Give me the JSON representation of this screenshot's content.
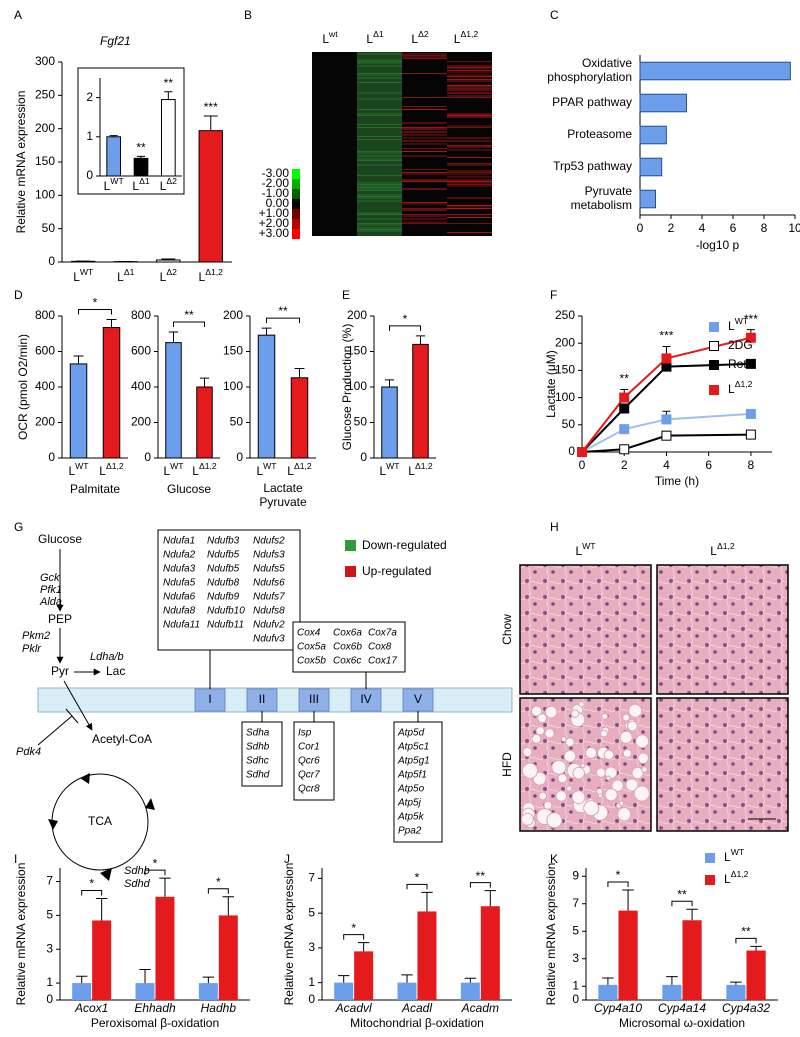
{
  "panel_labels": [
    "A",
    "B",
    "C",
    "D",
    "E",
    "F",
    "G",
    "H",
    "I",
    "J",
    "K"
  ],
  "chart_data": [
    {
      "type": "bar",
      "title": "Fgf21",
      "y_label": "Relative mRNA expression",
      "categories": [
        {
          "base": "L",
          "sup": "WT"
        },
        {
          "base": "L",
          "sup": "Δ1"
        },
        {
          "base": "L",
          "sup": "Δ2"
        },
        {
          "base": "L",
          "sup": "Δ1,2"
        }
      ],
      "values": [
        1,
        0.5,
        3,
        197
      ],
      "errors": [
        0.3,
        0.2,
        1.5,
        22
      ],
      "colors": [
        "#6d9eeb",
        "#000000",
        "#ffffff",
        "#e41a1c"
      ],
      "annotations": [
        null,
        null,
        null,
        "***"
      ],
      "ylim": [
        0,
        300
      ],
      "yticks": [
        0,
        50,
        100,
        150,
        200,
        250,
        300
      ]
    },
    {
      "type": "bar",
      "categories": [
        {
          "base": "L",
          "sup": "WT"
        },
        {
          "base": "L",
          "sup": "Δ1"
        },
        {
          "base": "L",
          "sup": "Δ2"
        }
      ],
      "values": [
        1,
        0.45,
        1.95
      ],
      "errors": [
        0.03,
        0.05,
        0.2
      ],
      "colors": [
        "#6d9eeb",
        "#000000",
        "#ffffff"
      ],
      "annotations": [
        null,
        "**",
        "**"
      ],
      "ylim": [
        0,
        2.5
      ],
      "yticks": [
        0,
        1,
        2
      ]
    },
    {
      "type": "hbar",
      "categories": [
        [
          "Oxidative",
          "phosphorylation"
        ],
        [
          "PPAR pathway"
        ],
        [
          "Proteasome"
        ],
        [
          "Trp53 pathway"
        ],
        [
          "Pyruvate",
          "metabolism"
        ]
      ],
      "values": [
        9.7,
        3.0,
        1.7,
        1.4,
        1.0
      ],
      "color": "#6d9eeb",
      "x_label": "-log10 p",
      "xlim": [
        0,
        10
      ],
      "xticks": [
        0,
        2,
        4,
        6,
        8,
        10
      ]
    },
    {
      "type": "bar",
      "y_label": "OCR (pmol O2/min)",
      "categories": [
        {
          "base": "L",
          "sup": "WT"
        },
        {
          "base": "L",
          "sup": "Δ1,2"
        }
      ],
      "values": [
        530,
        735
      ],
      "errors": [
        45,
        45
      ],
      "colors": [
        "#6d9eeb",
        "#e41a1c"
      ],
      "bracket_label": "*",
      "x_label": "Palmitate",
      "ylim": [
        0,
        800
      ],
      "yticks": [
        0,
        200,
        400,
        600,
        800
      ]
    },
    {
      "type": "bar",
      "categories": [
        {
          "base": "L",
          "sup": "WT"
        },
        {
          "base": "L",
          "sup": "Δ1,2"
        }
      ],
      "values": [
        650,
        400
      ],
      "errors": [
        60,
        50
      ],
      "colors": [
        "#6d9eeb",
        "#e41a1c"
      ],
      "bracket_label": "**",
      "x_label": "Glucose",
      "ylim": [
        0,
        800
      ],
      "yticks": [
        0,
        200,
        400,
        600,
        800
      ]
    },
    {
      "type": "bar",
      "categories": [
        {
          "base": "L",
          "sup": "WT"
        },
        {
          "base": "L",
          "sup": "Δ1,2"
        }
      ],
      "values": [
        173,
        113
      ],
      "errors": [
        10,
        13
      ],
      "colors": [
        "#6d9eeb",
        "#e41a1c"
      ],
      "bracket_label": "**",
      "x_label": [
        "Lactate",
        "Pyruvate"
      ],
      "ylim": [
        0,
        200
      ],
      "yticks": [
        0,
        50,
        100,
        150,
        200
      ]
    },
    {
      "type": "bar",
      "y_label": "Glucose Production (%)",
      "categories": [
        {
          "base": "L",
          "sup": "WT"
        },
        {
          "base": "L",
          "sup": "Δ1,2"
        }
      ],
      "values": [
        100,
        160
      ],
      "errors": [
        10,
        12
      ],
      "colors": [
        "#6d9eeb",
        "#e41a1c"
      ],
      "bracket_label": "*",
      "ylim": [
        0,
        200
      ],
      "yticks": [
        0,
        50,
        100,
        150,
        200
      ]
    },
    {
      "type": "line",
      "y_label": "Lactate (μM)",
      "x_label": "Time (h)",
      "x": [
        0,
        2,
        4,
        8
      ],
      "series": [
        {
          "name": {
            "base": "L",
            "sup": "WT"
          },
          "color": "#9fbff2",
          "marker_color": "#6d9eeb",
          "values": [
            0,
            42,
            60,
            70
          ],
          "errors": [
            0,
            6,
            15,
            8
          ]
        },
        {
          "name": "2DG",
          "color": "#000000",
          "marker_color": "#ffffff",
          "values": [
            0,
            5,
            30,
            32
          ],
          "errors": [
            0,
            3,
            8,
            4
          ]
        },
        {
          "name": "Rot",
          "color": "#000000",
          "marker_color": "#000000",
          "values": [
            0,
            80,
            157,
            162
          ],
          "errors": [
            0,
            8,
            6,
            5
          ]
        },
        {
          "name": {
            "base": "L",
            "sup": "Δ1,2"
          },
          "color": "#e41a1c",
          "marker_color": "#e41a1c",
          "values": [
            0,
            100,
            172,
            210
          ],
          "errors": [
            0,
            15,
            22,
            15
          ]
        }
      ],
      "annotations": [
        null,
        "**",
        "***",
        "***"
      ],
      "xlim": [
        0,
        9
      ],
      "xticks": [
        0,
        2,
        4,
        6,
        8
      ],
      "ylim": [
        0,
        250
      ],
      "yticks": [
        0,
        50,
        100,
        150,
        200,
        250
      ]
    },
    {
      "type": "grouped_bar",
      "y_label": "Relative mRNA expression",
      "x_label": "Peroxisomal β-oxidation",
      "categories": [
        "Acox1",
        "Ehhadh",
        "Hadhb"
      ],
      "series": [
        {
          "name": {
            "base": "L",
            "sup": "WT"
          },
          "color": "#6d9eeb",
          "values": [
            1,
            1,
            1
          ],
          "errors": [
            0.4,
            0.8,
            0.35
          ]
        },
        {
          "name": {
            "base": "L",
            "sup": "Δ1,2"
          },
          "color": "#e41a1c",
          "values": [
            4.7,
            6.1,
            5.0
          ],
          "errors": [
            1.3,
            1.1,
            1.1
          ]
        }
      ],
      "annotations": [
        "*",
        "*",
        "*"
      ],
      "ylim": [
        0,
        7.8
      ],
      "yticks": [
        0,
        1,
        3,
        5,
        7
      ]
    },
    {
      "type": "grouped_bar",
      "y_label": "Relative mRNA expression",
      "x_label": "Mitochondrial β-oxidation",
      "categories": [
        "Acadvl",
        "Acadl",
        "Acadm"
      ],
      "series": [
        {
          "name": {
            "base": "L",
            "sup": "WT"
          },
          "color": "#6d9eeb",
          "values": [
            1,
            1,
            1
          ],
          "errors": [
            0.4,
            0.45,
            0.25
          ]
        },
        {
          "name": {
            "base": "L",
            "sup": "Δ1,2"
          },
          "color": "#e41a1c",
          "values": [
            2.8,
            5.1,
            5.4
          ],
          "errors": [
            0.5,
            1.1,
            0.9
          ]
        }
      ],
      "annotations": [
        "*",
        "*",
        "**"
      ],
      "ylim": [
        0,
        7.6
      ],
      "yticks": [
        0,
        1,
        3,
        5,
        7
      ]
    },
    {
      "type": "grouped_bar",
      "y_label": "Relative mRNA expression",
      "x_label": "Microsomal ω-oxidation",
      "categories": [
        "Cyp4a10",
        "Cyp4a14",
        "Cyp4a32"
      ],
      "series": [
        {
          "name": {
            "base": "L",
            "sup": "WT"
          },
          "color": "#6d9eeb",
          "values": [
            1.1,
            1.1,
            1.1
          ],
          "errors": [
            0.5,
            0.6,
            0.2
          ]
        },
        {
          "name": {
            "base": "L",
            "sup": "Δ1,2"
          },
          "color": "#e41a1c",
          "values": [
            6.5,
            5.8,
            3.6
          ],
          "errors": [
            1.5,
            0.8,
            0.3
          ]
        }
      ],
      "annotations": [
        "*",
        "**",
        "**"
      ],
      "legend": true,
      "ylim": [
        0,
        9.6
      ],
      "yticks": [
        0,
        1,
        3,
        5,
        7,
        9
      ]
    }
  ],
  "heatmap": {
    "columns": [
      {
        "base": "L",
        "sup": "wt"
      },
      {
        "base": "L",
        "sup": "Δ1"
      },
      {
        "base": "L",
        "sup": "Δ2"
      },
      {
        "base": "L",
        "sup": "Δ1,2"
      }
    ],
    "scale_labels": [
      "-3.00",
      "-2.00",
      "-1.00",
      "0.00",
      "+1.00",
      "+2.00",
      "+3.00"
    ],
    "scale_colors": [
      "#00ff00",
      "#00b000",
      "#006000",
      "#000000",
      "#700000",
      "#b80000",
      "#ff0000"
    ]
  },
  "diagram": {
    "metabolites": [
      "Glucose",
      "PEP",
      "Pyr",
      "Lac",
      "Acetyl-CoA",
      "TCA"
    ],
    "enzymes": [
      {
        "name": "Gck",
        "color": "#2e9a3a"
      },
      {
        "name": "Pfk1",
        "color": "#c8141c"
      },
      {
        "name": "Alda",
        "color": "#c8141c"
      },
      {
        "name": "Pkm2",
        "color": "#c8141c"
      },
      {
        "name": "Pklr",
        "color": "#2e9a3a"
      },
      {
        "name": "Ldha/b",
        "color": "#c8141c"
      },
      {
        "name": "Pdk4",
        "color": "#c8141c"
      },
      {
        "name": "Sdhb",
        "color": "#c8141c"
      },
      {
        "name": "Sdhd",
        "color": "#c8141c"
      }
    ],
    "legend": [
      {
        "label": "Down-regulated",
        "color": "#2e9a3a"
      },
      {
        "label": "Up-regulated",
        "color": "#d0141c"
      }
    ],
    "gene_color": "#c8141c",
    "complexes": [
      {
        "label": "I",
        "genes": [
          [
            "Ndufa1",
            "Ndufb3",
            "Ndufs2"
          ],
          [
            "Ndufa2",
            "Ndufb5",
            "Ndufs3"
          ],
          [
            "Ndufa3",
            "Ndufb5",
            "Ndufs5"
          ],
          [
            "Ndufa5",
            "Ndufb8",
            "Ndufs6"
          ],
          [
            "Ndufa6",
            "Ndufb9",
            "Ndufs7"
          ],
          [
            "Ndufa8",
            "Ndufb10",
            "Ndufs8"
          ],
          [
            "Ndufa11",
            "Ndufb11",
            "Ndufv2"
          ],
          [
            null,
            null,
            "Ndufv3"
          ]
        ]
      },
      {
        "label": "II",
        "genes": [
          [
            "Sdha"
          ],
          [
            "Sdhb"
          ],
          [
            "Sdhc"
          ],
          [
            "Sdhd"
          ]
        ]
      },
      {
        "label": "III",
        "genes": [
          [
            "Isp"
          ],
          [
            "Cor1"
          ],
          [
            "Qcr6"
          ],
          [
            "Qcr7"
          ],
          [
            "Qcr8"
          ]
        ]
      },
      {
        "label": "IV",
        "genes": [
          [
            "Cox4",
            "Cox6a",
            "Cox7a"
          ],
          [
            "Cox5a",
            "Cox6b",
            "Cox8"
          ],
          [
            "Cox5b",
            "Cox6c",
            "Cox17"
          ]
        ]
      },
      {
        "label": "V",
        "genes": [
          [
            "Atp5d"
          ],
          [
            "Atp5c1"
          ],
          [
            "Atp5g1"
          ],
          [
            "Atp5f1"
          ],
          [
            "Atp5o"
          ],
          [
            "Atp5j"
          ],
          [
            "Atp5k"
          ],
          [
            "Ppa2"
          ]
        ]
      }
    ]
  },
  "histology": {
    "columns": [
      {
        "base": "L",
        "sup": "WT"
      },
      {
        "base": "L",
        "sup": "Δ1,2"
      }
    ],
    "rows": [
      "Chow",
      "HFD"
    ]
  }
}
